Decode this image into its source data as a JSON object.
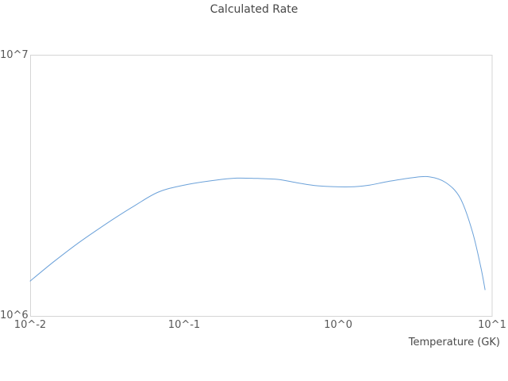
{
  "chart_data": {
    "type": "line",
    "title": "Calculated Rate",
    "xlabel": "Temperature (GK)",
    "ylabel": "",
    "x_scale": "log",
    "y_scale": "log",
    "xlim": [
      0.01,
      10
    ],
    "ylim": [
      1000000,
      10000000
    ],
    "x_tick_labels": [
      "10^-2",
      "10^-1",
      "10^0",
      "10^1"
    ],
    "y_tick_labels": [
      "10^6",
      "10^7"
    ],
    "grid": false,
    "legend_position": "none",
    "line_color": "#6BA1D9",
    "frame_color": "#d5d5d5",
    "series": [
      {
        "name": "Calculated Rate",
        "x": [
          0.01,
          0.014,
          0.021,
          0.034,
          0.048,
          0.068,
          0.1,
          0.16,
          0.22,
          0.3,
          0.41,
          0.55,
          0.74,
          1.2,
          1.6,
          2.1,
          3.0,
          3.9,
          5.0,
          6.2,
          7.4,
          8.4,
          9.0
        ],
        "y": [
          1360000,
          1600000,
          1920000,
          2330000,
          2650000,
          2980000,
          3170000,
          3310000,
          3370000,
          3360000,
          3330000,
          3230000,
          3150000,
          3120000,
          3170000,
          3270000,
          3380000,
          3410000,
          3240000,
          2830000,
          2130000,
          1560000,
          1260000
        ]
      }
    ]
  }
}
